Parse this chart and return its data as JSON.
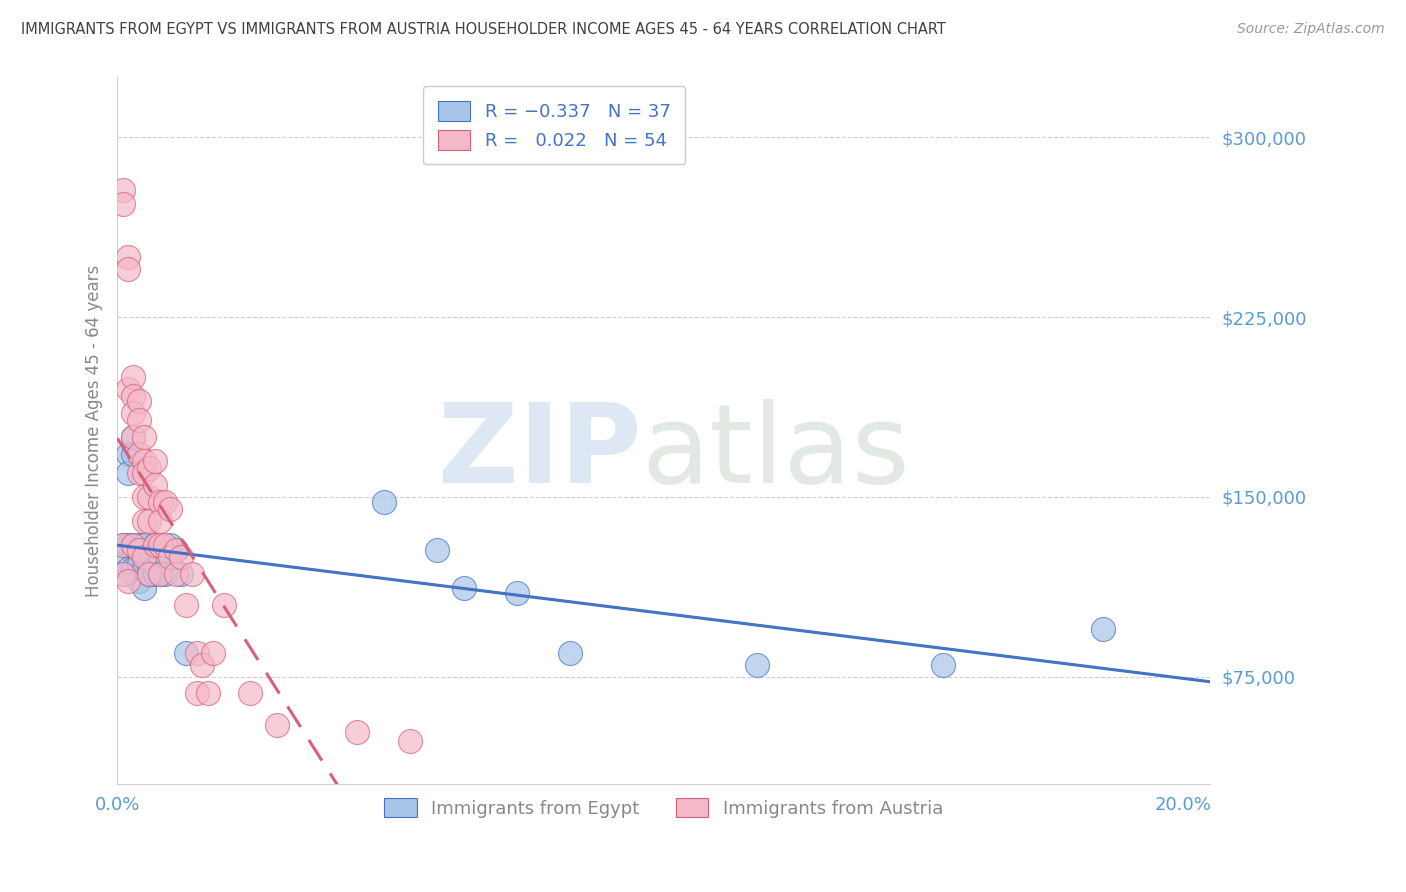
{
  "title": "IMMIGRANTS FROM EGYPT VS IMMIGRANTS FROM AUSTRIA HOUSEHOLDER INCOME AGES 45 - 64 YEARS CORRELATION CHART",
  "source": "Source: ZipAtlas.com",
  "ylabel": "Householder Income Ages 45 - 64 years",
  "xlim": [
    0.0,
    0.205
  ],
  "ylim": [
    30000,
    325000
  ],
  "ytick_vals": [
    75000,
    150000,
    225000,
    300000
  ],
  "ytick_labels": [
    "$75,000",
    "$150,000",
    "$225,000",
    "$300,000"
  ],
  "xtick_vals": [
    0.0,
    0.04,
    0.08,
    0.12,
    0.16,
    0.2
  ],
  "xtick_labels": [
    "0.0%",
    "",
    "",
    "",
    "",
    "20.0%"
  ],
  "egypt_color": "#a8c4e8",
  "austria_color": "#f5b8c8",
  "egypt_line_color": "#4472c4",
  "austria_line_color": "#d4607a",
  "tick_color": "#5b9bd5",
  "egypt_points_x": [
    0.001,
    0.001,
    0.001,
    0.002,
    0.002,
    0.002,
    0.002,
    0.003,
    0.003,
    0.003,
    0.003,
    0.004,
    0.004,
    0.004,
    0.005,
    0.005,
    0.005,
    0.006,
    0.006,
    0.007,
    0.007,
    0.007,
    0.008,
    0.008,
    0.009,
    0.01,
    0.011,
    0.012,
    0.013,
    0.05,
    0.06,
    0.065,
    0.075,
    0.085,
    0.12,
    0.155,
    0.185
  ],
  "egypt_points_y": [
    130000,
    122000,
    118000,
    168000,
    160000,
    130000,
    120000,
    175000,
    168000,
    130000,
    120000,
    130000,
    122000,
    115000,
    130000,
    120000,
    112000,
    122000,
    118000,
    130000,
    122000,
    118000,
    125000,
    118000,
    118000,
    130000,
    128000,
    118000,
    85000,
    148000,
    128000,
    112000,
    110000,
    85000,
    80000,
    80000,
    95000
  ],
  "austria_points_x": [
    0.001,
    0.001,
    0.001,
    0.001,
    0.002,
    0.002,
    0.002,
    0.002,
    0.003,
    0.003,
    0.003,
    0.003,
    0.003,
    0.004,
    0.004,
    0.004,
    0.004,
    0.004,
    0.005,
    0.005,
    0.005,
    0.005,
    0.005,
    0.005,
    0.006,
    0.006,
    0.006,
    0.006,
    0.007,
    0.007,
    0.007,
    0.008,
    0.008,
    0.008,
    0.008,
    0.009,
    0.009,
    0.01,
    0.01,
    0.011,
    0.011,
    0.012,
    0.013,
    0.014,
    0.015,
    0.015,
    0.016,
    0.017,
    0.018,
    0.02,
    0.025,
    0.03,
    0.045,
    0.055
  ],
  "austria_points_y": [
    278000,
    272000,
    130000,
    118000,
    250000,
    245000,
    195000,
    115000,
    200000,
    192000,
    185000,
    175000,
    130000,
    190000,
    182000,
    168000,
    160000,
    128000,
    175000,
    165000,
    160000,
    150000,
    140000,
    125000,
    162000,
    150000,
    140000,
    118000,
    165000,
    155000,
    130000,
    148000,
    140000,
    130000,
    118000,
    148000,
    130000,
    145000,
    125000,
    128000,
    118000,
    125000,
    105000,
    118000,
    85000,
    68000,
    80000,
    68000,
    85000,
    105000,
    68000,
    55000,
    52000,
    48000
  ]
}
